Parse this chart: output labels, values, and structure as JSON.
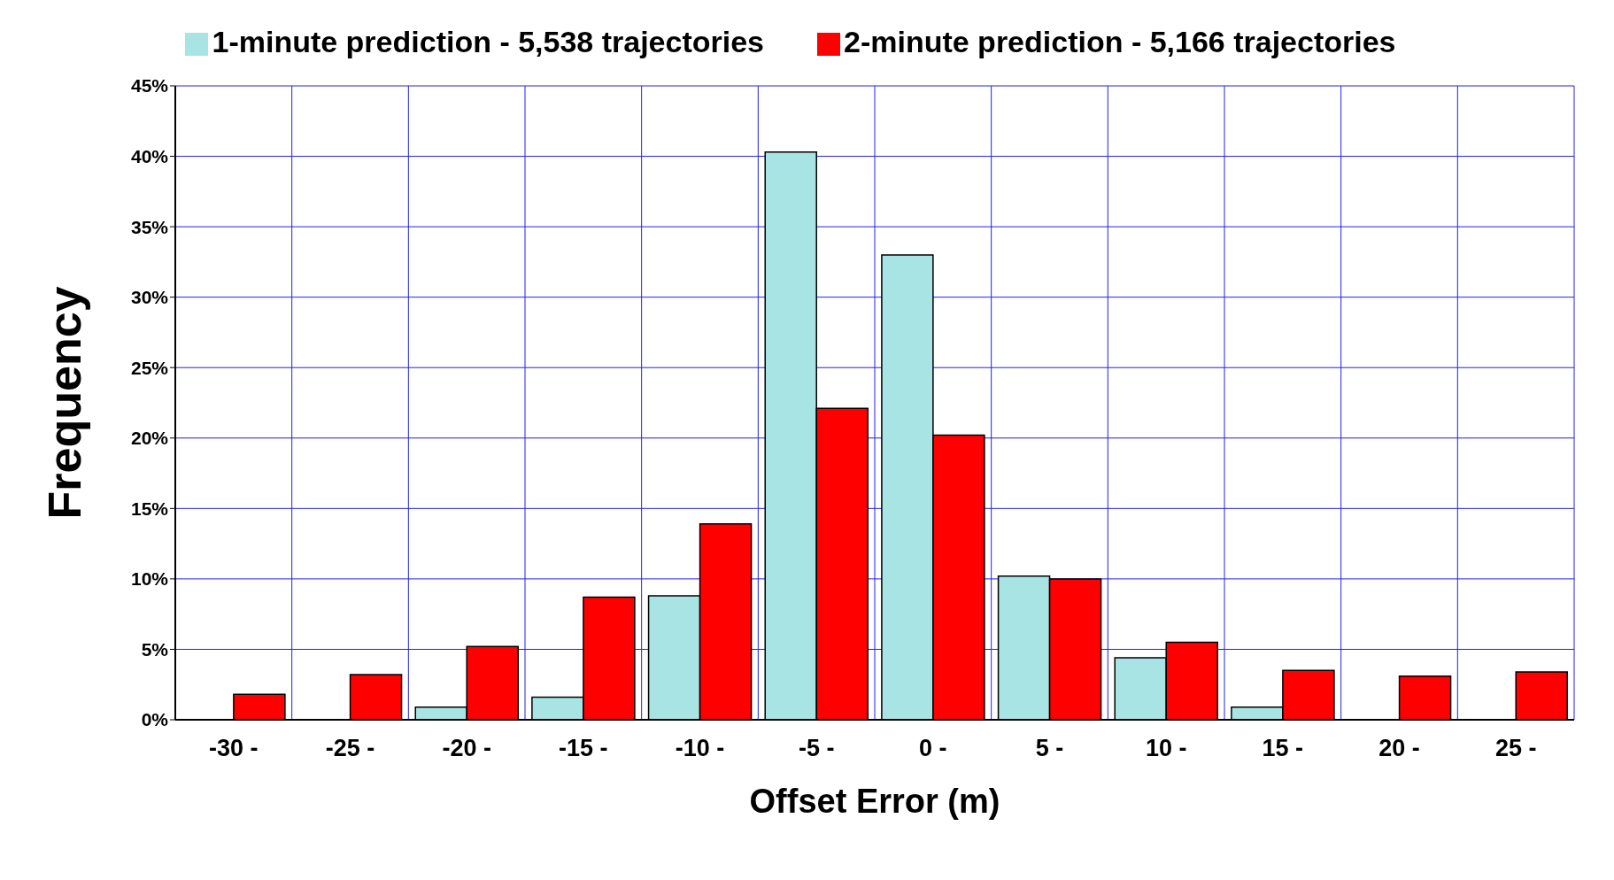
{
  "chart_data": {
    "type": "bar",
    "xlabel": "Offset Error (m)",
    "ylabel": "Frequency",
    "categories": [
      "-30 -",
      "-25 -",
      "-20 -",
      "-15 -",
      "-10 -",
      "-5 -",
      "0 -",
      "5 -",
      "10 -",
      "15 -",
      "20 -",
      "25 -"
    ],
    "series": [
      {
        "name": "1-minute prediction - 5,538 trajectories",
        "color": "#a8e4e4",
        "values": [
          0,
          0,
          0.9,
          1.6,
          8.8,
          40.3,
          33.0,
          10.2,
          4.4,
          0.9,
          0,
          0
        ]
      },
      {
        "name": "2-minute prediction - 5,166 trajectories",
        "color": "#ff0000",
        "values": [
          1.8,
          3.2,
          5.2,
          8.7,
          13.9,
          22.1,
          20.2,
          10.0,
          5.5,
          3.5,
          3.1,
          3.4
        ]
      }
    ],
    "ylim": [
      0,
      45
    ],
    "yticks": [
      {
        "value": 0,
        "label": "0%"
      },
      {
        "value": 5,
        "label": "5%"
      },
      {
        "value": 10,
        "label": "10%"
      },
      {
        "value": 15,
        "label": "15%"
      },
      {
        "value": 20,
        "label": "20%"
      },
      {
        "value": 25,
        "label": "25%"
      },
      {
        "value": 30,
        "label": "30%"
      },
      {
        "value": 35,
        "label": "35%"
      },
      {
        "value": 40,
        "label": "40%"
      },
      {
        "value": 45,
        "label": "45%"
      }
    ],
    "grid": true,
    "legend": "top"
  }
}
